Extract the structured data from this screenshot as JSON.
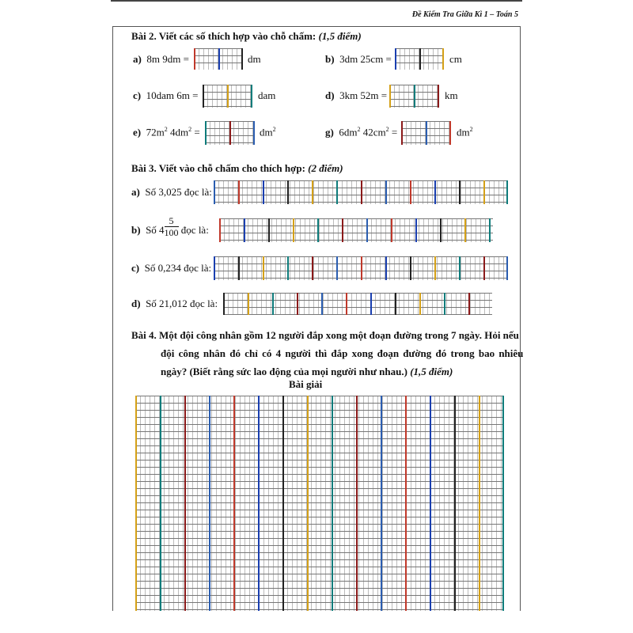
{
  "header": {
    "title": "Đề Kiểm Tra Giữa Kì 1 – Toán 5"
  },
  "bai2": {
    "title": "Bài 2.  Viết các số thích hợp vào chỗ chấm:",
    "points": "(1,5 điểm)",
    "items": [
      {
        "label": "a)",
        "expr": "8m 9dm =",
        "unit": "dm"
      },
      {
        "label": "b)",
        "expr": "3dm 25cm =",
        "unit": "cm"
      },
      {
        "label": "c)",
        "expr": "10dam 6m =",
        "unit": "dam"
      },
      {
        "label": "d)",
        "expr": "3km 52m =",
        "unit": "km"
      },
      {
        "label": "e)",
        "expr_a": "72m",
        "expr_b": " 4dm",
        "expr_c": " =",
        "unit": "dm",
        "sup": "2"
      },
      {
        "label": "g)",
        "expr_a": "6dm",
        "expr_b": " 42cm",
        "expr_c": " =",
        "unit": "dm",
        "sup": "2"
      }
    ]
  },
  "bai3": {
    "title": "Bài 3. Viết vào chỗ chấm cho thích hợp:",
    "points": "(2 điểm)",
    "items": [
      {
        "label": "a)",
        "text": "Số 3,025 đọc là:"
      },
      {
        "label": "b)",
        "prefix": "Số 4",
        "num": "5",
        "den": "100",
        "suffix": "đọc là:"
      },
      {
        "label": "c)",
        "text": "Số 0,234 đọc là:"
      },
      {
        "label": "d)",
        "text": "Số 21,012 đọc là:"
      }
    ]
  },
  "bai4": {
    "line1": "Bài 4. Một đội công nhân gồm 12 người đắp xong một đoạn đường trong 7 ngày. Hỏi nếu",
    "line2": "đội công nhân đó chỉ có 4 người thì đắp xong đoạn đường đó trong bao nhiêu",
    "line3": "ngày? (Biết rằng sức lao động của mọi người như nhau.)",
    "points": "(1,5 điểm)",
    "solution_label": "Bài giải"
  }
}
